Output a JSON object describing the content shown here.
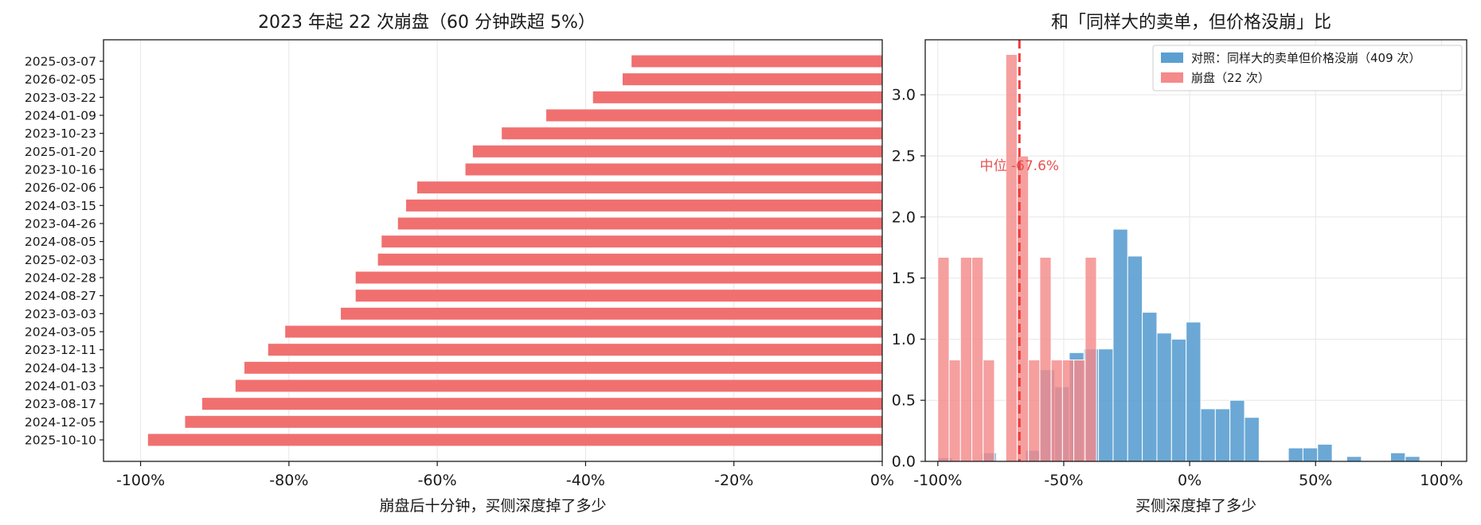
{
  "colors": {
    "crash": "#f07070",
    "crash_hist": "#f48a8a",
    "control": "#5b9fd0",
    "median_line": "#ee3b3b",
    "median_text": "#e85050",
    "axis": "#1a1a1a",
    "grid": "#e6e6e6"
  },
  "chart_data": [
    {
      "type": "bar",
      "orientation": "horizontal",
      "title": "2023 年起 22 次崩盘（60 分钟跌超 5%）",
      "xlabel": "崩盘后十分钟，买侧深度掉了多少",
      "ylabel": "",
      "xlim": [
        -105,
        0
      ],
      "xticks": [
        -100,
        -80,
        -60,
        -40,
        -20,
        0
      ],
      "xtick_labels": [
        "-100%",
        "-80%",
        "-60%",
        "-40%",
        "-20%",
        "0%"
      ],
      "grid": true,
      "categories": [
        "2025-03-07",
        "2026-02-05",
        "2023-03-22",
        "2024-01-09",
        "2023-10-23",
        "2025-01-20",
        "2023-10-16",
        "2026-02-06",
        "2024-03-15",
        "2023-04-26",
        "2024-08-05",
        "2025-02-03",
        "2024-02-28",
        "2024-08-27",
        "2023-03-03",
        "2024-03-05",
        "2023-12-11",
        "2024-04-13",
        "2024-01-03",
        "2023-08-17",
        "2024-12-05",
        "2025-10-10"
      ],
      "values": [
        -33.8,
        -35.0,
        -39.0,
        -45.3,
        -51.3,
        -55.2,
        -56.2,
        -62.7,
        -64.2,
        -65.3,
        -67.5,
        -68.0,
        -71.0,
        -71.0,
        -73.0,
        -80.5,
        -82.8,
        -86.0,
        -87.2,
        -91.7,
        -94.0,
        -99.0
      ]
    },
    {
      "type": "histogram",
      "title": "和「同样大的卖单，但价格没崩」比",
      "xlabel": "买侧深度掉了多少",
      "ylabel": "",
      "xlim": [
        -105,
        110
      ],
      "ylim": [
        0,
        3.45
      ],
      "xticks": [
        -100,
        -50,
        0,
        50,
        100
      ],
      "xtick_labels": [
        "-100%",
        "-50%",
        "0%",
        "50%",
        "100%"
      ],
      "yticks": [
        0.0,
        0.5,
        1.0,
        1.5,
        2.0,
        2.5,
        3.0
      ],
      "ytick_labels": [
        "0.0",
        "0.5",
        "1.0",
        "1.5",
        "2.0",
        "2.5",
        "3.0"
      ],
      "grid": true,
      "legend_position": "top-right",
      "median": -67.6,
      "median_label": "中位 -67.6%",
      "series": [
        {
          "name": "对照：同样大的卖单但价格没崩（409 次）",
          "color_key": "control",
          "bin_start": -100,
          "bin_width": 5.8,
          "values": [
            0.03,
            0,
            0,
            0.07,
            0,
            0,
            0.09,
            0.75,
            0.61,
            0.89,
            0.92,
            0.92,
            1.9,
            1.68,
            1.22,
            1.05,
            1.0,
            1.14,
            0.43,
            0.43,
            0.5,
            0.36,
            0,
            0,
            0.11,
            0.11,
            0.14,
            0,
            0.04,
            0,
            0,
            0.07,
            0.04
          ]
        },
        {
          "name": "崩盘（22 次）",
          "color_key": "crash_hist",
          "bin_start": -100,
          "bin_width": 4.5,
          "values": [
            1.67,
            0.83,
            1.67,
            1.67,
            0.83,
            0,
            3.33,
            2.5,
            0.83,
            1.67,
            0.83,
            0.83,
            0.83,
            1.67
          ]
        }
      ]
    }
  ]
}
